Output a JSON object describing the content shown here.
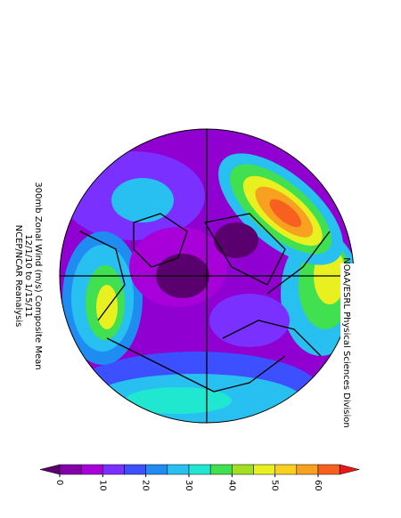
{
  "title": [
    "300mb Zonal Wind (m/s) Composite Mean",
    "12/1/10  to  1/15/11",
    "NCEP/NCAR Reanalysis"
  ],
  "credit": "NOAA/ESRL Physical Sciences Division",
  "colorbar": {
    "ticks": [
      0,
      10,
      20,
      30,
      40,
      50,
      60
    ],
    "step": 5,
    "colors": [
      "#5a006e",
      "#8400a8",
      "#a800d8",
      "#7a30ff",
      "#3c50ff",
      "#1e8cf0",
      "#28c0f0",
      "#20e8d0",
      "#40e050",
      "#a0e020",
      "#e8f020",
      "#f8d020",
      "#f8a020",
      "#f86020",
      "#e81818"
    ]
  }
}
